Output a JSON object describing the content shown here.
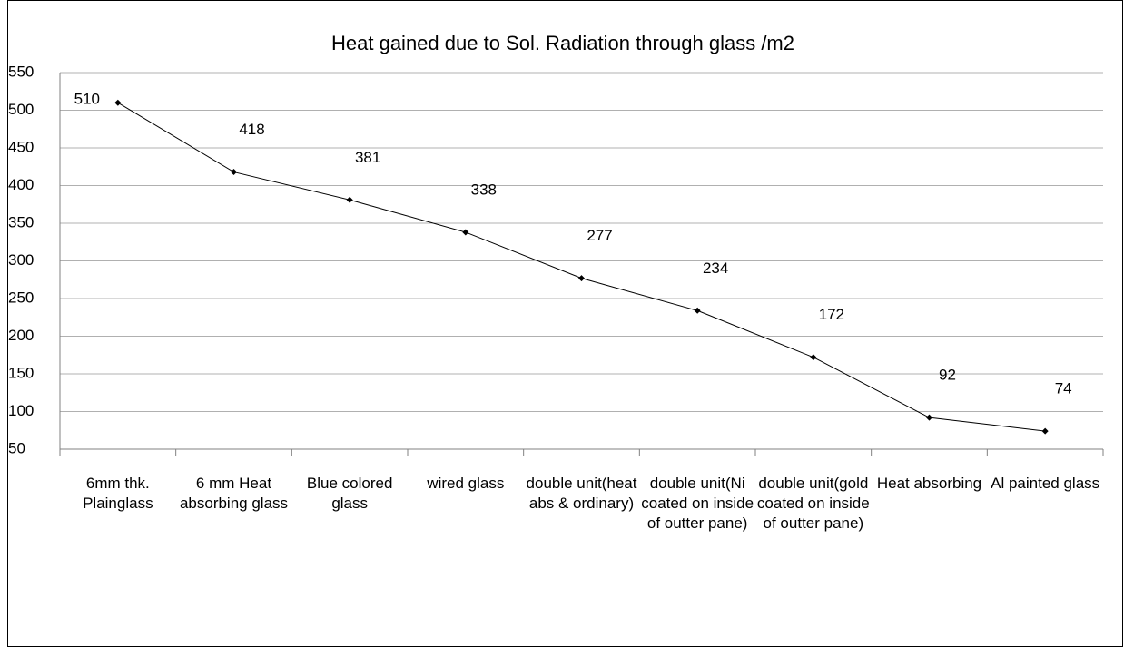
{
  "chart_data": {
    "type": "line",
    "title": "Heat gained due to Sol. Radiation through glass  /m2",
    "categories": [
      "6mm thk. Plainglass",
      "6 mm Heat absorbing glass",
      "Blue colored glass",
      "wired glass",
      "double unit(heat abs & ordinary)",
      "double unit(Ni coated on inside of outter pane)",
      "double unit(gold coated on inside of outter pane)",
      "Heat absorbing",
      "Al painted glass"
    ],
    "values": [
      510,
      418,
      381,
      338,
      277,
      234,
      172,
      92,
      74
    ],
    "color": "#000000",
    "ylim": [
      50,
      550
    ],
    "yticks": [
      50,
      100,
      150,
      200,
      250,
      300,
      350,
      400,
      450,
      500,
      550
    ],
    "grid": true
  }
}
